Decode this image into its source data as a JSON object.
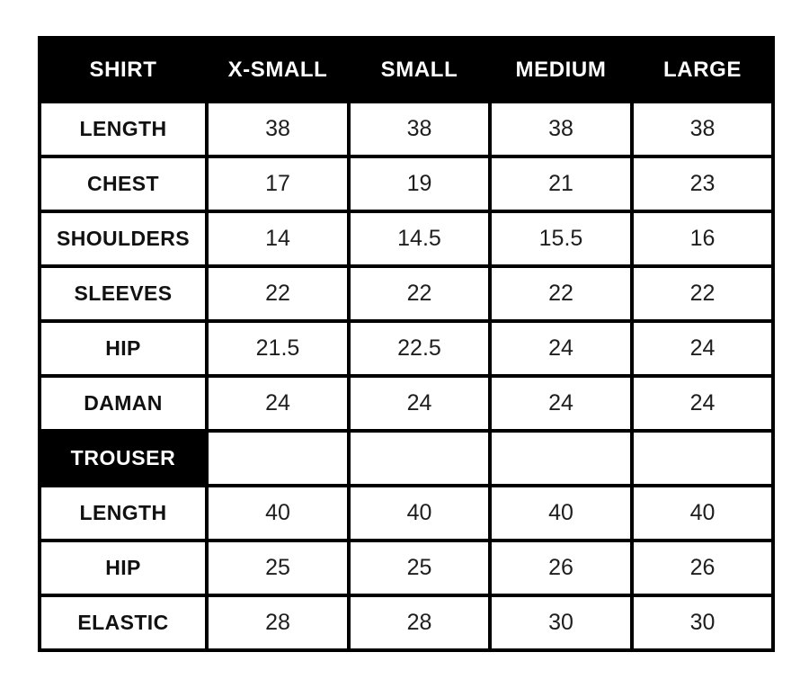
{
  "colors": {
    "page_bg": "#ffffff",
    "header_bg": "#000000",
    "header_text": "#ffffff",
    "border": "#000000",
    "cell_text": "#1e1e1e"
  },
  "chart_data": {
    "type": "table",
    "columns": [
      "SHIRT",
      "X-SMALL",
      "SMALL",
      "MEDIUM",
      "LARGE"
    ],
    "rows": [
      {
        "label": "LENGTH",
        "values": [
          38,
          38,
          38,
          38
        ],
        "section_header": false
      },
      {
        "label": "CHEST",
        "values": [
          17,
          19,
          21,
          23
        ],
        "section_header": false
      },
      {
        "label": "SHOULDERS",
        "values": [
          14,
          14.5,
          15.5,
          16
        ],
        "section_header": false
      },
      {
        "label": "SLEEVES",
        "values": [
          22,
          22,
          22,
          22
        ],
        "section_header": false
      },
      {
        "label": "HIP",
        "values": [
          21.5,
          22.5,
          24,
          24
        ],
        "section_header": false
      },
      {
        "label": "DAMAN",
        "values": [
          24,
          24,
          24,
          24
        ],
        "section_header": false
      },
      {
        "label": "TROUSER",
        "values": [
          null,
          null,
          null,
          null
        ],
        "section_header": true
      },
      {
        "label": "LENGTH",
        "values": [
          40,
          40,
          40,
          40
        ],
        "section_header": false
      },
      {
        "label": "HIP",
        "values": [
          25,
          25,
          26,
          26
        ],
        "section_header": false
      },
      {
        "label": "ELASTIC",
        "values": [
          28,
          28,
          30,
          30
        ],
        "section_header": false
      }
    ],
    "title": "",
    "legend": null,
    "grid": "solid-black-borders"
  }
}
